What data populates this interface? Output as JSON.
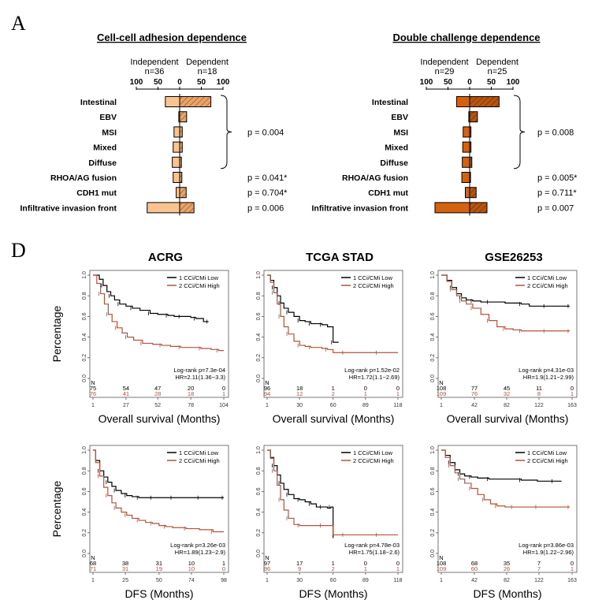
{
  "panels": {
    "a": "A",
    "d": "D"
  },
  "colors": {
    "bar1": "#f9c48f",
    "bar1_hatch": "#d99a5e",
    "bar2": "#d4620f",
    "bar2_hatch": "#9c4408",
    "low": "#000000",
    "high": "#b5523b"
  },
  "chart_data": [
    {
      "type": "bar",
      "id": "bar1",
      "title": "Cell-cell adhesion dependence",
      "left_header": {
        "label": "Independent",
        "n": "n=36"
      },
      "right_header": {
        "label": "Dependent",
        "n": "n=18"
      },
      "ticks": [
        "100",
        "50",
        "0",
        "50",
        "100"
      ],
      "tick_values": [
        -100,
        -50,
        0,
        50,
        100
      ],
      "xlim": [
        -100,
        100
      ],
      "categories": [
        "Intestinal",
        "EBV",
        "MSI",
        "Mixed",
        "Diffuse",
        "RHOA/AG fusion",
        "CDH1 mut",
        "Infiltrative invasion front"
      ],
      "series": [
        {
          "name": "Independent",
          "values": [
            33,
            2,
            13,
            15,
            17,
            15,
            8,
            75
          ]
        },
        {
          "name": "Dependent",
          "values": [
            72,
            16,
            6,
            6,
            4,
            5,
            15,
            33
          ]
        }
      ],
      "pvalues": [
        {
          "text": "p = 0.004",
          "bracket_from": 0,
          "bracket_to": 4
        },
        {
          "text": "p = 0.041*",
          "row": 5
        },
        {
          "text": "p = 0.704*",
          "row": 6
        },
        {
          "text": "p = 0.006",
          "row": 7
        }
      ]
    },
    {
      "type": "bar",
      "id": "bar2",
      "title": "Double challenge dependence",
      "left_header": {
        "label": "Independent",
        "n": "n=29"
      },
      "right_header": {
        "label": "Dependent",
        "n": "n=25"
      },
      "ticks": [
        "100",
        "50",
        "0",
        "50",
        "100"
      ],
      "tick_values": [
        -100,
        -50,
        0,
        50,
        100
      ],
      "xlim": [
        -100,
        100
      ],
      "categories": [
        "Intestinal",
        "EBV",
        "MSI",
        "Mixed",
        "Diffuse",
        "RHOA/AG fusion",
        "CDH1 mut",
        "Infiltrative invasion front"
      ],
      "series": [
        {
          "name": "Independent",
          "values": [
            30,
            2,
            15,
            16,
            17,
            18,
            10,
            80
          ]
        },
        {
          "name": "Dependent",
          "values": [
            68,
            18,
            3,
            3,
            5,
            2,
            15,
            40
          ]
        }
      ],
      "pvalues": [
        {
          "text": "p = 0.008",
          "bracket_from": 0,
          "bracket_to": 4
        },
        {
          "text": "p = 0.005*",
          "row": 5
        },
        {
          "text": "p = 0.711*",
          "row": 6
        },
        {
          "text": "p = 0.007",
          "row": 7
        }
      ]
    },
    {
      "type": "line",
      "id": "km1",
      "title": "ACRG",
      "xlabel": "Overall survival (Months)",
      "ylabel": "Percentage",
      "ylim": [
        0,
        1
      ],
      "yticks": [
        "0.0",
        "0.2",
        "0.4",
        "0.6",
        "0.8",
        "1.0"
      ],
      "xticks": [
        "1",
        "27",
        "52",
        "78",
        "104"
      ],
      "xlim": [
        1,
        104
      ],
      "legend": [
        "1 CCi/CMi Low",
        "2 CCi/CMi High"
      ],
      "stats": [
        "Log-rank p=7.3e-04",
        "HR=2.11(1.36~3.3)"
      ],
      "risk": {
        "label": "N",
        "low": [
          "75",
          "54",
          "47",
          "20",
          "0"
        ],
        "high": [
          "76",
          "41",
          "28",
          "18",
          "1"
        ]
      },
      "series": [
        {
          "name": "1 CCi/CMi Low",
          "x": [
            1,
            6,
            9,
            12,
            15,
            18,
            22,
            27,
            32,
            38,
            46,
            52,
            60,
            65,
            70,
            78,
            82,
            88,
            92
          ],
          "y": [
            1.0,
            0.96,
            0.9,
            0.84,
            0.8,
            0.76,
            0.72,
            0.7,
            0.68,
            0.66,
            0.63,
            0.62,
            0.61,
            0.6,
            0.6,
            0.59,
            0.58,
            0.55,
            0.55
          ]
        },
        {
          "name": "2 CCi/CMi High",
          "x": [
            1,
            4,
            7,
            10,
            13,
            16,
            20,
            24,
            28,
            33,
            40,
            48,
            55,
            62,
            70,
            78,
            86,
            94,
            100,
            104
          ],
          "y": [
            1.0,
            0.92,
            0.82,
            0.72,
            0.62,
            0.55,
            0.49,
            0.44,
            0.4,
            0.37,
            0.34,
            0.33,
            0.32,
            0.31,
            0.3,
            0.3,
            0.29,
            0.28,
            0.27,
            0.27
          ]
        }
      ]
    },
    {
      "type": "line",
      "id": "km2",
      "title": "TCGA STAD",
      "xlabel": "Overall survival (Months)",
      "ylabel": "",
      "ylim": [
        0,
        1
      ],
      "yticks": [
        "0.0",
        "0.2",
        "0.4",
        "0.6",
        "0.8",
        "1.0"
      ],
      "xticks": [
        "1",
        "30",
        "60",
        "89",
        "118"
      ],
      "xlim": [
        1,
        118
      ],
      "legend": [
        "1 CCi/CMi Low",
        "2 CCi/CMi High"
      ],
      "stats": [
        "Log-rank p=1.52e-02",
        "HR=1.72(1.1~2.69)"
      ],
      "risk": {
        "label": "N",
        "low": [
          "96",
          "18",
          "1",
          "0",
          "0"
        ],
        "high": [
          "94",
          "12",
          "2",
          "1",
          "1"
        ]
      },
      "series": [
        {
          "name": "1 CCi/CMi Low",
          "x": [
            1,
            4,
            7,
            10,
            13,
            16,
            20,
            25,
            30,
            35,
            40,
            45,
            50,
            55,
            60,
            65
          ],
          "y": [
            1.0,
            0.95,
            0.88,
            0.8,
            0.73,
            0.68,
            0.64,
            0.6,
            0.56,
            0.55,
            0.53,
            0.53,
            0.52,
            0.5,
            0.35,
            0.35
          ]
        },
        {
          "name": "2 CCi/CMi High",
          "x": [
            1,
            4,
            7,
            10,
            13,
            16,
            20,
            25,
            30,
            35,
            40,
            50,
            55,
            60,
            70,
            85,
            100,
            118
          ],
          "y": [
            1.0,
            0.93,
            0.83,
            0.72,
            0.6,
            0.5,
            0.43,
            0.36,
            0.32,
            0.31,
            0.3,
            0.29,
            0.28,
            0.25,
            0.25,
            0.25,
            0.25,
            0.25
          ]
        }
      ]
    },
    {
      "type": "line",
      "id": "km3",
      "title": "GSE26253",
      "xlabel": "Overall survival (Months)",
      "ylabel": "",
      "ylim": [
        0,
        1
      ],
      "yticks": [
        "0.0",
        "0.2",
        "0.4",
        "0.6",
        "0.8",
        "1.0"
      ],
      "xticks": [
        "1",
        "42",
        "82",
        "122",
        "163"
      ],
      "xlim": [
        1,
        163
      ],
      "legend": [
        "1 CCi/CMi Low",
        "2 CCi/CMi High"
      ],
      "stats": [
        "Log-rank p=4.31e-03",
        "HR=1.9(1.21~2.99)"
      ],
      "risk": {
        "label": "N",
        "low": [
          "108",
          "77",
          "45",
          "11",
          "0"
        ],
        "high": [
          "109",
          "76",
          "32",
          "8",
          "1"
        ]
      },
      "series": [
        {
          "name": "1 CCi/CMi Low",
          "x": [
            1,
            8,
            14,
            20,
            26,
            32,
            40,
            50,
            60,
            80,
            100,
            110,
            130,
            150,
            160
          ],
          "y": [
            1.0,
            0.95,
            0.88,
            0.82,
            0.78,
            0.76,
            0.75,
            0.74,
            0.74,
            0.73,
            0.72,
            0.7,
            0.7,
            0.7,
            0.7
          ]
        },
        {
          "name": "2 CCi/CMi High",
          "x": [
            1,
            8,
            14,
            20,
            26,
            32,
            40,
            50,
            60,
            70,
            80,
            90,
            100,
            115,
            130,
            150,
            160
          ],
          "y": [
            1.0,
            0.94,
            0.86,
            0.8,
            0.75,
            0.72,
            0.68,
            0.62,
            0.56,
            0.5,
            0.48,
            0.47,
            0.46,
            0.46,
            0.46,
            0.46,
            0.46
          ]
        }
      ]
    },
    {
      "type": "line",
      "id": "km4",
      "title": "",
      "xlabel": "DFS (Months)",
      "ylabel": "Percentage",
      "ylim": [
        0,
        1
      ],
      "yticks": [
        "0.0",
        "0.2",
        "0.4",
        "0.6",
        "0.8",
        "1.0"
      ],
      "xticks": [
        "1",
        "25",
        "50",
        "74",
        "98"
      ],
      "xlim": [
        1,
        98
      ],
      "legend": [
        "1 CCi/CMi Low",
        "2 CCi/CMi High"
      ],
      "stats": [
        "Log-rank p=3.26e-03",
        "HR=1.89(1.23~2.9)"
      ],
      "risk": {
        "label": "N",
        "low": [
          "68",
          "38",
          "31",
          "10",
          "1"
        ],
        "high": [
          "71",
          "31",
          "19",
          "10",
          "0"
        ]
      },
      "series": [
        {
          "name": "1 CCi/CMi Low",
          "x": [
            1,
            3,
            6,
            9,
            12,
            15,
            18,
            22,
            26,
            30,
            35,
            40,
            45,
            50,
            60,
            70,
            80,
            90,
            98
          ],
          "y": [
            1.0,
            0.9,
            0.8,
            0.74,
            0.69,
            0.65,
            0.61,
            0.58,
            0.56,
            0.55,
            0.54,
            0.54,
            0.54,
            0.54,
            0.54,
            0.54,
            0.54,
            0.54,
            0.54
          ]
        },
        {
          "name": "2 CCi/CMi High",
          "x": [
            1,
            3,
            6,
            9,
            12,
            15,
            18,
            22,
            26,
            30,
            35,
            40,
            45,
            50,
            55,
            60,
            70,
            80,
            90,
            98
          ],
          "y": [
            1.0,
            0.88,
            0.75,
            0.64,
            0.56,
            0.49,
            0.44,
            0.4,
            0.37,
            0.34,
            0.32,
            0.3,
            0.29,
            0.27,
            0.26,
            0.25,
            0.24,
            0.23,
            0.21,
            0.21
          ]
        }
      ]
    },
    {
      "type": "line",
      "id": "km5",
      "title": "",
      "xlabel": "DFS (Months)",
      "ylabel": "",
      "ylim": [
        0,
        1
      ],
      "yticks": [
        "0.0",
        "0.2",
        "0.4",
        "0.6",
        "0.8",
        "1.0"
      ],
      "xticks": [
        "1",
        "30",
        "60",
        "89",
        "118"
      ],
      "xlim": [
        1,
        118
      ],
      "legend": [
        "1 CCi/CMi Low",
        "2 CCi/CMi High"
      ],
      "stats": [
        "Log-rank p=4.78e-03",
        "HR=1.75(1.18~2.6)"
      ],
      "risk": {
        "label": "N",
        "low": [
          "97",
          "17",
          "1",
          "0",
          "0"
        ],
        "high": [
          "96",
          "9",
          "2",
          "1",
          "1"
        ]
      },
      "series": [
        {
          "name": "1 CCi/CMi Low",
          "x": [
            1,
            4,
            7,
            10,
            13,
            16,
            20,
            25,
            30,
            35,
            40,
            45,
            50,
            55,
            58,
            60
          ],
          "y": [
            1.0,
            0.93,
            0.85,
            0.76,
            0.68,
            0.62,
            0.57,
            0.53,
            0.52,
            0.5,
            0.48,
            0.45,
            0.45,
            0.44,
            0.45,
            0.15
          ]
        },
        {
          "name": "2 CCi/CMi High",
          "x": [
            1,
            4,
            7,
            10,
            13,
            16,
            20,
            25,
            30,
            40,
            50,
            60,
            70,
            85,
            100,
            118
          ],
          "y": [
            1.0,
            0.92,
            0.8,
            0.66,
            0.52,
            0.42,
            0.34,
            0.28,
            0.27,
            0.27,
            0.27,
            0.18,
            0.18,
            0.18,
            0.18,
            0.18
          ]
        }
      ]
    },
    {
      "type": "line",
      "id": "km6",
      "title": "",
      "xlabel": "DFS (Months)",
      "ylabel": "",
      "ylim": [
        0,
        1
      ],
      "yticks": [
        "0.0",
        "0.2",
        "0.4",
        "0.6",
        "0.8",
        "1.0"
      ],
      "xticks": [
        "1",
        "42",
        "82",
        "122",
        "163"
      ],
      "xlim": [
        1,
        163
      ],
      "legend": [
        "1 CCi/CMi Low",
        "2 CCi/CMi High"
      ],
      "stats": [
        "Log-rank p=3.86e-03",
        "HR=1.9(1.22~2.96)"
      ],
      "risk": {
        "label": "N",
        "low": [
          "108",
          "68",
          "35",
          "7",
          "0"
        ],
        "high": [
          "109",
          "60",
          "26",
          "7",
          "1"
        ]
      },
      "series": [
        {
          "name": "1 CCi/CMi Low",
          "x": [
            1,
            6,
            12,
            18,
            24,
            30,
            38,
            46,
            60,
            80,
            100,
            120,
            140,
            150
          ],
          "y": [
            1.0,
            0.95,
            0.88,
            0.81,
            0.77,
            0.75,
            0.74,
            0.73,
            0.72,
            0.72,
            0.71,
            0.7,
            0.7,
            0.7
          ]
        },
        {
          "name": "2 CCi/CMi High",
          "x": [
            1,
            6,
            12,
            18,
            24,
            30,
            38,
            46,
            54,
            62,
            70,
            80,
            90,
            100,
            120,
            140,
            160
          ],
          "y": [
            1.0,
            0.93,
            0.85,
            0.78,
            0.72,
            0.68,
            0.63,
            0.57,
            0.52,
            0.48,
            0.46,
            0.45,
            0.45,
            0.45,
            0.45,
            0.45,
            0.45
          ]
        }
      ]
    }
  ]
}
